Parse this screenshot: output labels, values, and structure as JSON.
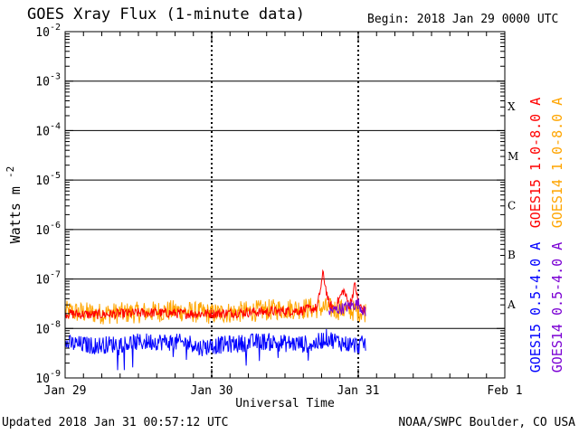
{
  "header": {
    "title": "GOES Xray Flux (1-minute data)",
    "begin": "Begin:  2018 Jan 29 0000 UTC"
  },
  "footer": {
    "updated": "Updated 2018 Jan 31 00:57:12 UTC",
    "credit": "NOAA/SWPC Boulder, CO USA"
  },
  "chart_data": {
    "type": "line",
    "title": "GOES Xray Flux (1-minute data)",
    "xlabel": "Universal Time",
    "ylabel": "Watts m",
    "ylabel_sup": "-2",
    "xlim_days": [
      0,
      3
    ],
    "x_ticks": [
      {
        "day": 0,
        "label": "Jan 29"
      },
      {
        "day": 1,
        "label": "Jan 30"
      },
      {
        "day": 2,
        "label": "Jan 31"
      },
      {
        "day": 3,
        "label": "Feb 1"
      }
    ],
    "y_scale": "log",
    "ylim": [
      1e-09,
      0.01
    ],
    "y_ticks": [
      {
        "exp": -9,
        "base": "10",
        "sup": "-9"
      },
      {
        "exp": -8,
        "base": "10",
        "sup": "-8"
      },
      {
        "exp": -7,
        "base": "10",
        "sup": "-7"
      },
      {
        "exp": -6,
        "base": "10",
        "sup": "-6"
      },
      {
        "exp": -5,
        "base": "10",
        "sup": "-5"
      },
      {
        "exp": -4,
        "base": "10",
        "sup": "-4"
      },
      {
        "exp": -3,
        "base": "10",
        "sup": "-3"
      },
      {
        "exp": -2,
        "base": "10",
        "sup": "-2"
      }
    ],
    "flare_classes": [
      {
        "label": "A",
        "exp": -7.5
      },
      {
        "label": "B",
        "exp": -6.5
      },
      {
        "label": "C",
        "exp": -5.5
      },
      {
        "label": "M",
        "exp": -4.5
      },
      {
        "label": "X",
        "exp": -3.5
      }
    ],
    "legend": [
      {
        "label": "GOES15 1.0-8.0 A",
        "color": "#ff0000"
      },
      {
        "label": "GOES14 1.0-8.0 A",
        "color": "#ffa500"
      },
      {
        "label": "GOES15 0.5-4.0 A",
        "color": "#0000ff"
      },
      {
        "label": "GOES14 0.5-4.0 A",
        "color": "#7b00d4"
      }
    ],
    "series": [
      {
        "name": "GOES14 1.0-8.0 A",
        "color": "#ffa500",
        "x": [
          0,
          0.25,
          0.5,
          0.75,
          1.0,
          1.25,
          1.5,
          1.75,
          2.05
        ],
        "y": [
          2.2e-08,
          2e-08,
          2.1e-08,
          2.3e-08,
          2e-08,
          2.2e-08,
          2.5e-08,
          2.6e-08,
          2.2e-08
        ]
      },
      {
        "name": "GOES15 1.0-8.0 A",
        "color": "#ff0000",
        "x": [
          0,
          0.2,
          0.4,
          0.6,
          0.8,
          1.0,
          1.2,
          1.4,
          1.6,
          1.72,
          1.76,
          1.8,
          1.84,
          1.9,
          1.94,
          1.98,
          2.0,
          2.05
        ],
        "y": [
          2e-08,
          1.9e-08,
          2e-08,
          2.1e-08,
          2e-08,
          2e-08,
          2.1e-08,
          2.2e-08,
          2.3e-08,
          2.6e-08,
          1.3e-07,
          3e-08,
          2.6e-08,
          6e-08,
          2.8e-08,
          8e-08,
          3e-08,
          2.2e-08
        ]
      },
      {
        "name": "GOES14 0.5-4.0 A",
        "color": "#7b00d4",
        "x": [
          1.8,
          1.9,
          2.0,
          2.05
        ],
        "y": [
          2.2e-08,
          2.6e-08,
          3.2e-08,
          2e-08
        ]
      },
      {
        "name": "GOES15 0.5-4.0 A",
        "color": "#0000ff",
        "x": [
          0,
          0.2,
          0.4,
          0.6,
          0.88,
          0.9,
          1.0,
          1.2,
          1.35,
          1.5,
          1.7,
          1.78,
          1.9,
          2.0,
          2.05
        ],
        "y": [
          5e-09,
          4.5e-09,
          5e-09,
          5.5e-09,
          5e-09,
          4e-09,
          4.5e-09,
          5e-09,
          5.5e-09,
          5e-09,
          4.8e-09,
          6.5e-09,
          5e-09,
          4.5e-09,
          5e-09
        ]
      }
    ]
  }
}
